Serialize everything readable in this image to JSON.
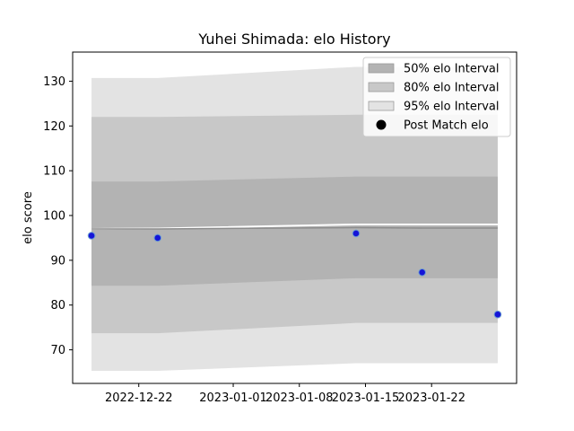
{
  "chart_data": {
    "type": "line",
    "title": "Yuhei Shimada: elo History",
    "xlabel": "",
    "ylabel": "elo score",
    "x_tick_labels": [
      "2022-12-22",
      "2023-01-01",
      "2023-01-08",
      "2023-01-15",
      "2023-01-22"
    ],
    "x_ticks": [
      "2022-12-22",
      "2023-01-01",
      "2023-01-08",
      "2023-01-15",
      "2023-01-22"
    ],
    "xlim": [
      "2022-12-15",
      "2023-01-31"
    ],
    "y_ticks": [
      70,
      80,
      90,
      100,
      110,
      120,
      130
    ],
    "ylim": [
      62.5,
      136.5
    ],
    "grid": false,
    "legend_position": "top-right",
    "colors": {
      "band50": "#b3b3b3",
      "band80": "#c8c8c8",
      "band95": "#e3e3e3",
      "mean_line": "#8c8c8c",
      "white_line": "#ffffff",
      "point_face": "#1515d8",
      "point_edge": "#6fa0d0"
    },
    "band_dates": [
      "2022-12-17",
      "2022-12-24",
      "2023-01-14",
      "2023-01-21",
      "2023-01-29"
    ],
    "mean_elo": [
      97.0,
      97.0,
      97.3,
      97.2,
      97.2
    ],
    "white_line": [
      97.0,
      97.1,
      98.0,
      98.0,
      98.0
    ],
    "interval_50": {
      "lower": [
        84.3,
        84.3,
        86.0,
        86.0,
        86.0
      ],
      "upper": [
        107.6,
        107.6,
        108.7,
        108.7,
        108.7
      ]
    },
    "interval_80": {
      "lower": [
        73.7,
        73.7,
        76.0,
        76.0,
        76.0
      ],
      "upper": [
        122.0,
        122.0,
        122.5,
        122.5,
        122.5
      ]
    },
    "interval_95": {
      "lower": [
        65.3,
        65.3,
        67.0,
        67.0,
        67.0
      ],
      "upper": [
        130.7,
        130.7,
        133.2,
        133.2,
        133.2
      ]
    },
    "points": [
      {
        "x": "2022-12-17",
        "y": 95.5
      },
      {
        "x": "2022-12-24",
        "y": 95.0
      },
      {
        "x": "2023-01-14",
        "y": 96.0
      },
      {
        "x": "2023-01-21",
        "y": 87.3
      },
      {
        "x": "2023-01-29",
        "y": 77.9
      }
    ],
    "legend": [
      {
        "label": "50% elo Interval",
        "kind": "band50"
      },
      {
        "label": "80% elo Interval",
        "kind": "band80"
      },
      {
        "label": "95% elo Interval",
        "kind": "band95"
      },
      {
        "label": "Post Match elo",
        "kind": "point"
      }
    ]
  }
}
